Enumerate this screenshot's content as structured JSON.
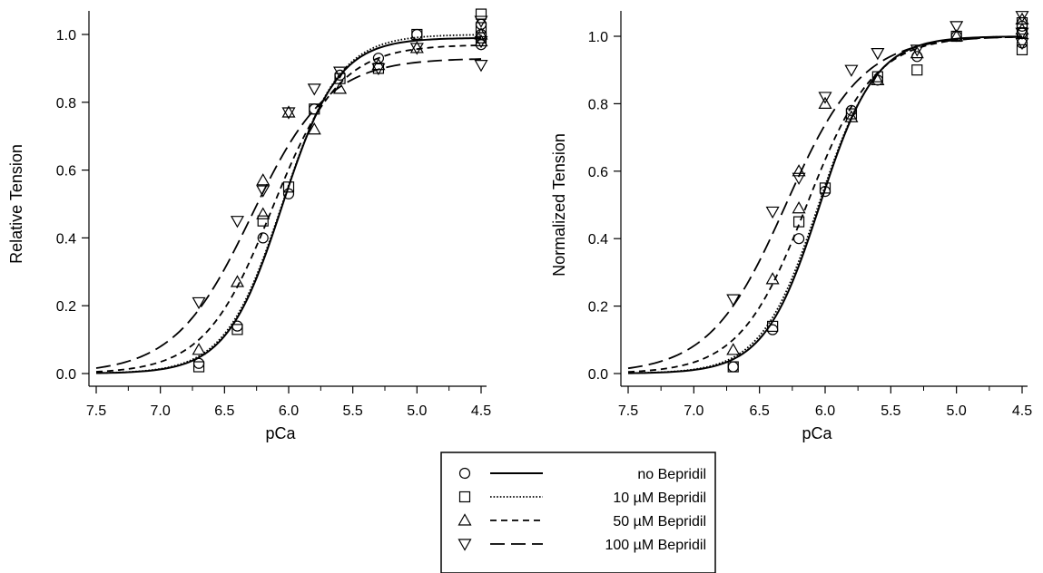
{
  "legend": {
    "placement": "bottom-center",
    "entries": [
      {
        "marker": "circle",
        "line": "solid",
        "label": "no Bepridil"
      },
      {
        "marker": "square",
        "line": "dotted",
        "label": "10 µM Bepridil"
      },
      {
        "marker": "triangle-up",
        "line": "short-dash",
        "label": "50 µM Bepridil"
      },
      {
        "marker": "triangle-down",
        "line": "long-dash",
        "label": "100 µM Bepridil"
      }
    ]
  },
  "chart_data": [
    {
      "type": "scatter",
      "title": "",
      "xlabel": "pCa",
      "ylabel": "Relative Tension",
      "xlim": [
        7.5,
        4.5
      ],
      "ylim": [
        0.0,
        1.0
      ],
      "x_reversed": true,
      "xticks": [
        "7.5",
        "7.0",
        "6.5",
        "6.0",
        "5.5",
        "5.0",
        "4.5"
      ],
      "yticks": [
        "0.0",
        "0.2",
        "0.4",
        "0.6",
        "0.8",
        "1.0"
      ],
      "grid": false,
      "series": [
        {
          "name": "no Bepridil",
          "marker": "circle",
          "line": "solid",
          "fit": {
            "pca50": 6.05,
            "hill": 2.0,
            "max": 0.99
          },
          "points": [
            [
              6.7,
              0.03
            ],
            [
              6.4,
              0.14
            ],
            [
              6.2,
              0.4
            ],
            [
              6.0,
              0.53
            ],
            [
              5.8,
              0.78
            ],
            [
              5.6,
              0.88
            ],
            [
              5.3,
              0.93
            ],
            [
              5.0,
              1.0
            ],
            [
              4.5,
              0.97
            ],
            [
              4.5,
              1.0
            ],
            [
              4.5,
              1.03
            ]
          ]
        },
        {
          "name": "10 µM Bepridil",
          "marker": "square",
          "line": "dotted",
          "fit": {
            "pca50": 6.05,
            "hill": 1.95,
            "max": 1.0
          },
          "points": [
            [
              6.7,
              0.02
            ],
            [
              6.4,
              0.13
            ],
            [
              6.2,
              0.45
            ],
            [
              6.0,
              0.55
            ],
            [
              5.8,
              0.78
            ],
            [
              5.6,
              0.87
            ],
            [
              5.3,
              0.9
            ],
            [
              5.0,
              1.0
            ],
            [
              4.5,
              0.99
            ],
            [
              4.5,
              1.02
            ],
            [
              4.5,
              1.06
            ]
          ]
        },
        {
          "name": "50 µM Bepridil",
          "marker": "triangle-up",
          "line": "short-dash",
          "fit": {
            "pca50": 6.13,
            "hill": 1.65,
            "max": 0.97
          },
          "points": [
            [
              6.7,
              0.07
            ],
            [
              6.4,
              0.27
            ],
            [
              6.2,
              0.47
            ],
            [
              6.2,
              0.57
            ],
            [
              6.0,
              0.77
            ],
            [
              5.8,
              0.72
            ],
            [
              5.6,
              0.84
            ],
            [
              5.3,
              0.91
            ],
            [
              5.0,
              0.96
            ],
            [
              4.5,
              0.98
            ],
            [
              4.5,
              1.0
            ]
          ]
        },
        {
          "name": "100 µM Bepridil",
          "marker": "triangle-down",
          "line": "long-dash",
          "fit": {
            "pca50": 6.29,
            "hill": 1.45,
            "max": 0.93
          },
          "points": [
            [
              6.7,
              0.21
            ],
            [
              6.4,
              0.45
            ],
            [
              6.2,
              0.54
            ],
            [
              6.0,
              0.77
            ],
            [
              5.8,
              0.84
            ],
            [
              5.6,
              0.89
            ],
            [
              5.3,
              0.9
            ],
            [
              5.0,
              0.96
            ],
            [
              4.5,
              0.91
            ],
            [
              4.5,
              0.98
            ],
            [
              4.5,
              1.04
            ]
          ]
        }
      ]
    },
    {
      "type": "scatter",
      "title": "",
      "xlabel": "pCa",
      "ylabel": "Normalized Tension",
      "xlim": [
        7.5,
        4.5
      ],
      "ylim": [
        0.0,
        1.0
      ],
      "x_reversed": true,
      "xticks": [
        "7.5",
        "7.0",
        "6.5",
        "6.0",
        "5.5",
        "5.0",
        "4.5"
      ],
      "yticks": [
        "0.0",
        "0.2",
        "0.4",
        "0.6",
        "0.8",
        "1.0"
      ],
      "grid": false,
      "series": [
        {
          "name": "no Bepridil",
          "marker": "circle",
          "line": "solid",
          "fit": {
            "pca50": 6.04,
            "hill": 2.05,
            "max": 1.0
          },
          "points": [
            [
              6.7,
              0.02
            ],
            [
              6.4,
              0.13
            ],
            [
              6.2,
              0.4
            ],
            [
              6.0,
              0.54
            ],
            [
              5.8,
              0.78
            ],
            [
              5.6,
              0.87
            ],
            [
              5.3,
              0.94
            ],
            [
              5.0,
              1.0
            ],
            [
              4.5,
              0.98
            ],
            [
              4.5,
              1.01
            ],
            [
              4.5,
              1.03
            ]
          ]
        },
        {
          "name": "10 µM Bepridil",
          "marker": "square",
          "line": "dotted",
          "fit": {
            "pca50": 6.05,
            "hill": 2.0,
            "max": 1.0
          },
          "points": [
            [
              6.7,
              0.02
            ],
            [
              6.4,
              0.14
            ],
            [
              6.2,
              0.45
            ],
            [
              6.0,
              0.55
            ],
            [
              5.8,
              0.77
            ],
            [
              5.6,
              0.88
            ],
            [
              5.3,
              0.9
            ],
            [
              5.0,
              1.0
            ],
            [
              4.5,
              0.96
            ],
            [
              4.5,
              1.01
            ],
            [
              4.5,
              1.04
            ]
          ]
        },
        {
          "name": "50 µM Bepridil",
          "marker": "triangle-up",
          "line": "short-dash",
          "fit": {
            "pca50": 6.14,
            "hill": 1.7,
            "max": 1.0
          },
          "points": [
            [
              6.7,
              0.07
            ],
            [
              6.4,
              0.28
            ],
            [
              6.2,
              0.49
            ],
            [
              6.2,
              0.6
            ],
            [
              6.0,
              0.8
            ],
            [
              5.8,
              0.76
            ],
            [
              5.6,
              0.87
            ],
            [
              5.3,
              0.95
            ],
            [
              5.0,
              1.0
            ],
            [
              4.5,
              1.02
            ],
            [
              4.5,
              1.05
            ]
          ]
        },
        {
          "name": "100 µM Bepridil",
          "marker": "triangle-down",
          "line": "long-dash",
          "fit": {
            "pca50": 6.3,
            "hill": 1.5,
            "max": 1.0
          },
          "points": [
            [
              6.7,
              0.22
            ],
            [
              6.4,
              0.48
            ],
            [
              6.2,
              0.58
            ],
            [
              6.0,
              0.82
            ],
            [
              5.8,
              0.9
            ],
            [
              5.6,
              0.95
            ],
            [
              5.3,
              0.96
            ],
            [
              5.0,
              1.03
            ],
            [
              4.5,
              0.98
            ],
            [
              4.5,
              1.01
            ],
            [
              4.5,
              1.06
            ]
          ]
        }
      ]
    }
  ]
}
